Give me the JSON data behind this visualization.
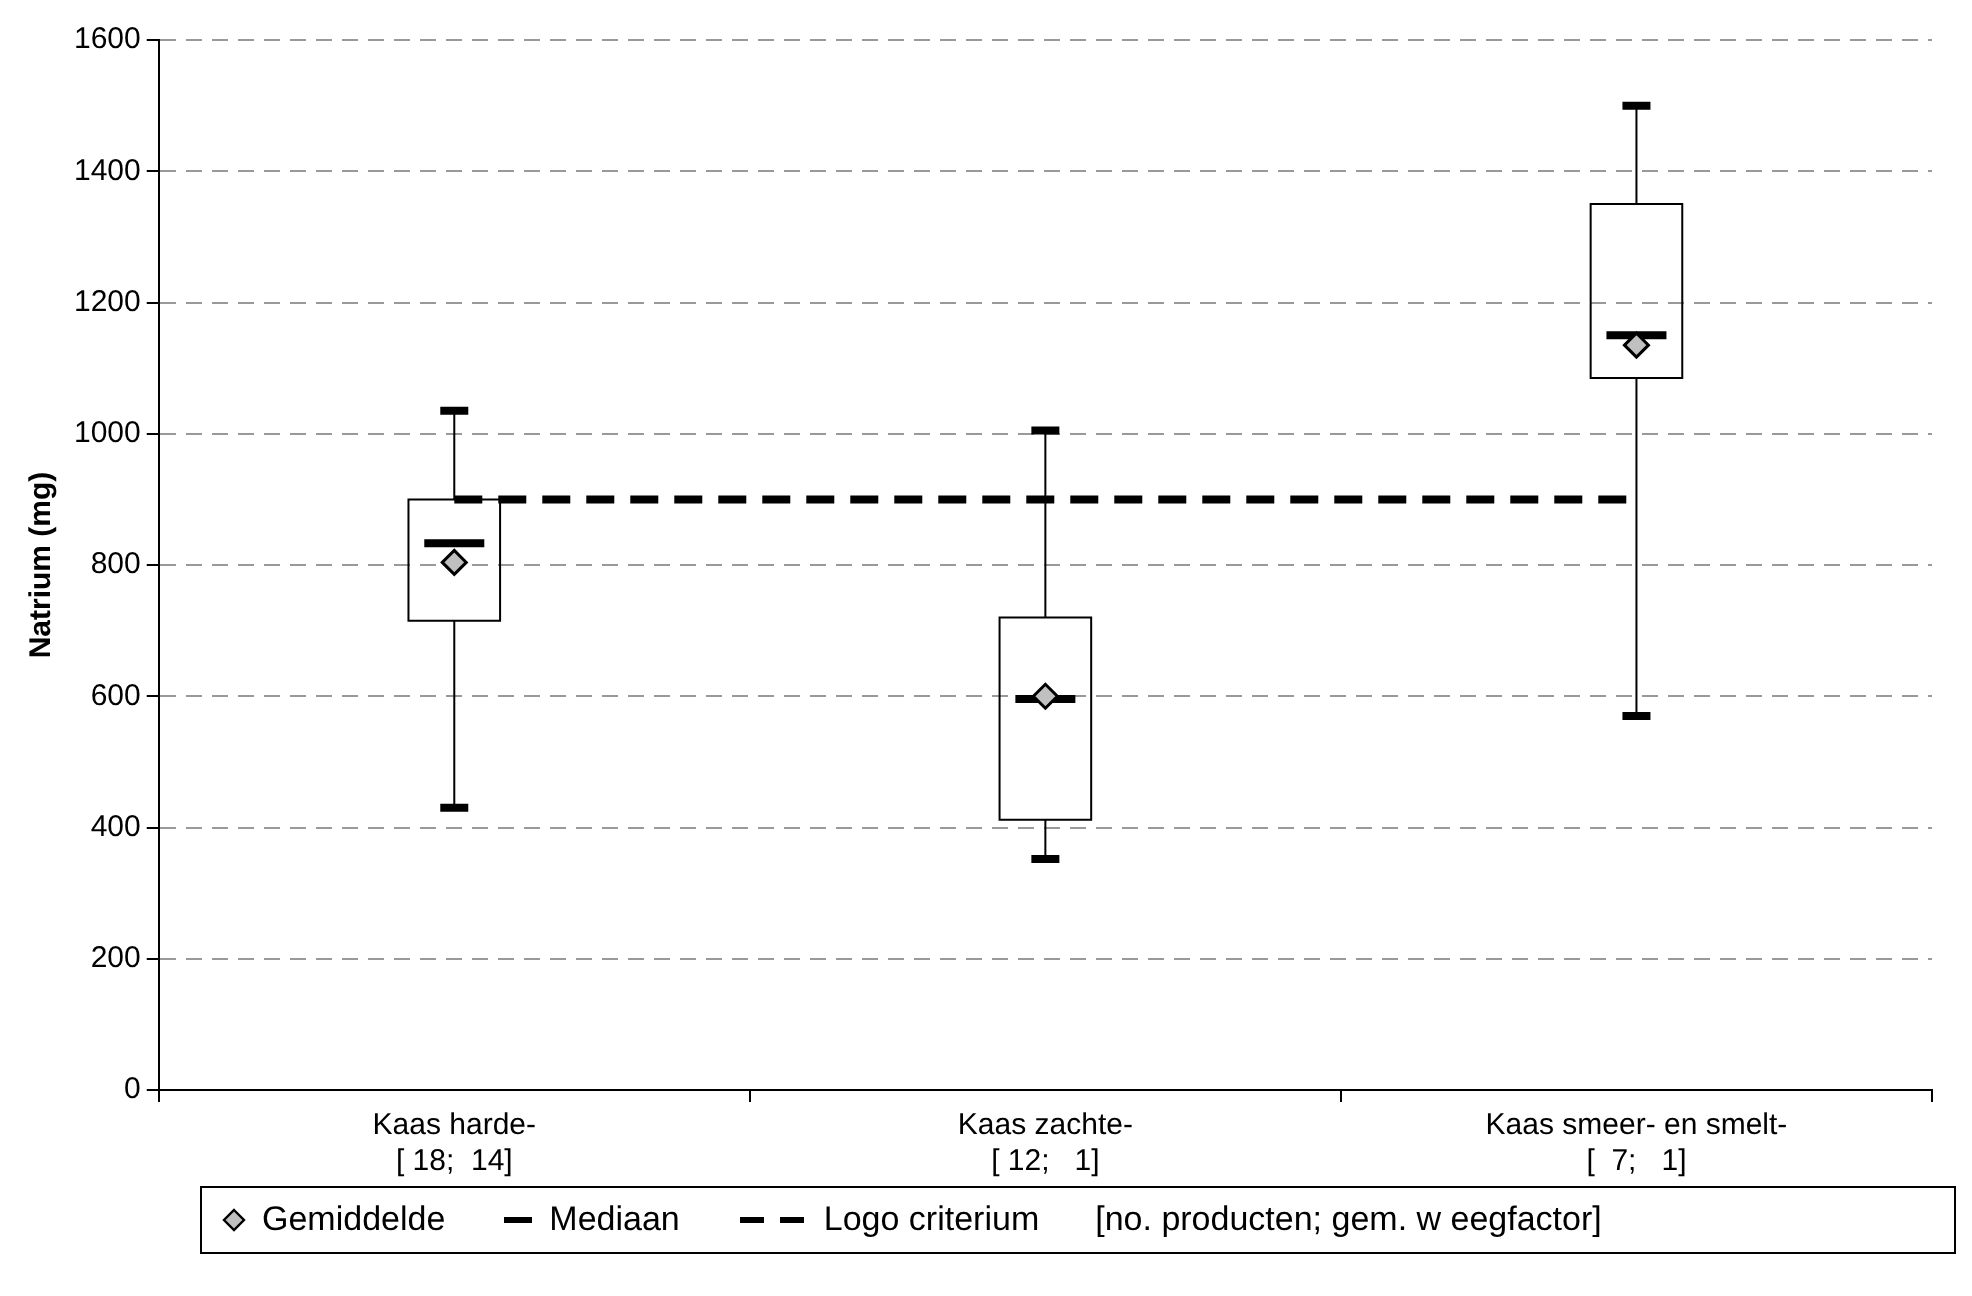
{
  "chart_data": {
    "type": "box",
    "ylabel": "Natrium (mg)",
    "categories": [
      "Kaas harde-\n[ 18;  14]",
      "Kaas zachte-\n[ 12;   1]",
      "Kaas smeer- en smelt-\n[  7;   1]"
    ],
    "series": [
      {
        "name": "Gemiddelde",
        "type": "scatter",
        "marker": "diamond",
        "color": "#c0c0c0",
        "x": [
          "Kaas harde-\n[ 18;  14]",
          "Kaas zachte-\n[ 12;   1]",
          "Kaas smeer- en smelt-\n[  7;   1]"
        ],
        "values": [
          804,
          600,
          1135
        ]
      },
      {
        "name": "Mediaan",
        "color": "#000000",
        "boxes": [
          {
            "low": 430,
            "q1": 715,
            "median": 833,
            "q3": 900,
            "high": 1035
          },
          {
            "low": 352,
            "q1": 412,
            "median": 596,
            "q3": 720,
            "high": 1005
          },
          {
            "low": 570,
            "q1": 1085,
            "median": 1150,
            "q3": 1350,
            "high": 1500
          }
        ]
      }
    ],
    "ref_lines": [
      {
        "axis": "y",
        "value": 900,
        "label": "Logo criterium",
        "color": "#000000",
        "line_style": "dashed"
      }
    ],
    "annotations": [
      "[no. producten; gem. w eegfactor]"
    ],
    "ylim": [
      0,
      1600
    ],
    "yticks": [
      0,
      200,
      400,
      600,
      800,
      1000,
      1200,
      1400,
      1600
    ],
    "grid": "y",
    "legend": "bottom"
  }
}
